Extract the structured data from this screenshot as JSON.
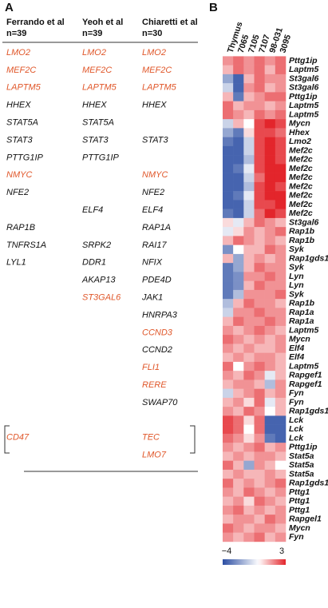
{
  "panel_a": {
    "label": "A",
    "columns": [
      {
        "name": "Ferrando et al",
        "n": "n=39"
      },
      {
        "name": "Yeoh et al",
        "n": "n=39"
      },
      {
        "name": "Chiaretti et al",
        "n": "n=30"
      }
    ],
    "rows": [
      [
        {
          "text": "LMO2",
          "highlighted": true
        },
        {
          "text": "LMO2",
          "highlighted": true
        },
        {
          "text": "LMO2",
          "highlighted": true
        }
      ],
      [
        {
          "text": "MEF2C",
          "highlighted": true
        },
        {
          "text": "MEF2C",
          "highlighted": true
        },
        {
          "text": "MEF2C",
          "highlighted": true
        }
      ],
      [
        {
          "text": "LAPTM5",
          "highlighted": true
        },
        {
          "text": "LAPTM5",
          "highlighted": true
        },
        {
          "text": "LAPTM5",
          "highlighted": true
        }
      ],
      [
        "HHEX",
        "HHEX",
        "HHEX"
      ],
      [
        "STAT5A",
        "STAT5A",
        null
      ],
      [
        "STAT3",
        "STAT3",
        "STAT3"
      ],
      [
        "PTTG1IP",
        "PTTG1IP",
        null
      ],
      [
        {
          "text": "NMYC",
          "highlighted": true
        },
        null,
        {
          "text": "NMYC",
          "highlighted": true
        }
      ],
      [
        "NFE2",
        null,
        "NFE2"
      ],
      [
        null,
        "ELF4",
        "ELF4"
      ],
      [
        "RAP1B",
        null,
        "RAP1A"
      ],
      [
        "TNFRS1A",
        "SRPK2",
        "RAI17"
      ],
      [
        "LYL1",
        "DDR1",
        "NFIX"
      ],
      [
        null,
        "AKAP13",
        "PDE4D"
      ],
      [
        null,
        {
          "text": "ST3GAL6",
          "highlighted": true
        },
        "JAK1"
      ],
      [
        null,
        null,
        "HNRPA3"
      ],
      [
        null,
        null,
        {
          "text": "CCND3",
          "highlighted": true
        }
      ],
      [
        null,
        null,
        "CCND2"
      ],
      [
        null,
        null,
        {
          "text": "FLI1",
          "highlighted": true
        }
      ],
      [
        null,
        null,
        {
          "text": "RERE",
          "highlighted": true
        }
      ],
      [
        null,
        null,
        "SWAP70"
      ],
      [
        null,
        null,
        null
      ],
      [
        {
          "text": "CD47",
          "highlighted": true
        },
        null,
        {
          "text": "TEC",
          "highlighted": true
        }
      ],
      [
        null,
        null,
        {
          "text": "LMO7",
          "highlighted": true
        }
      ]
    ]
  },
  "chart_data": {
    "type": "heatmap",
    "label": "B",
    "x": [
      "Thymus",
      "7065",
      "7105",
      "7107",
      "98-031",
      "3095"
    ],
    "y": [
      "Pttg1ip",
      "Laptm5",
      "St3gal6",
      "St3gal6",
      "Pttg1ip",
      "Laptm5",
      "Laptm5",
      "Mycn",
      "Hhex",
      "Lmo2",
      "Mef2c",
      "Mef2c",
      "Mef2c",
      "Mef2c",
      "Mef2c",
      "Mef2c",
      "Mef2c",
      "Mef2c",
      "St3gal6",
      "Rap1b",
      "Rap1b",
      "Syk",
      "Rap1gds1",
      "Syk",
      "Lyn",
      "Lyn",
      "Syk",
      "Rap1b",
      "Rap1a",
      "Rap1a",
      "Laptm5",
      "Mycn",
      "Elf4",
      "Elf4",
      "Laptm5",
      "Rapgef1",
      "Rapgef1",
      "Fyn",
      "Fyn",
      "Rap1gds1",
      "Lck",
      "Lck",
      "Lck",
      "Pttg1ip",
      "Stat5a",
      "Stat5a",
      "Stat5a",
      "Rap1gds1",
      "Pttg1",
      "Pttg1",
      "Pttg1",
      "Rapgel1",
      "Mycn",
      "Fyn"
    ],
    "values": [
      [
        1.5,
        2,
        1.5,
        2,
        1.5,
        2
      ],
      [
        1,
        2,
        1.5,
        2,
        1,
        2
      ],
      [
        -2,
        -3.5,
        1,
        2,
        1.5,
        1.5
      ],
      [
        -1,
        -3.5,
        1.5,
        2,
        1,
        1.5
      ],
      [
        1,
        -3,
        1,
        1.5,
        2,
        2
      ],
      [
        2,
        1,
        1.5,
        1.5,
        1,
        1.5
      ],
      [
        2,
        1.5,
        1,
        2,
        1.5,
        2
      ],
      [
        -1,
        1,
        0,
        2.5,
        3,
        2.5
      ],
      [
        -2,
        -3,
        0.5,
        2.5,
        2.5,
        2
      ],
      [
        -3,
        -3.5,
        -1,
        2.5,
        3,
        2.5
      ],
      [
        -3.5,
        -3.5,
        -1,
        2.5,
        3,
        2.5
      ],
      [
        -3.5,
        -3.5,
        -1.5,
        2.5,
        3,
        2.5
      ],
      [
        -3.5,
        -3,
        -0.5,
        2.5,
        3,
        3
      ],
      [
        -3.5,
        -3.5,
        -1,
        2,
        3,
        3
      ],
      [
        -3.5,
        -3.5,
        -1.5,
        2.5,
        3,
        2.5
      ],
      [
        -3.5,
        -3,
        -0.5,
        2.5,
        3,
        3
      ],
      [
        -3.5,
        -3.5,
        -1,
        2.5,
        2.5,
        3
      ],
      [
        -3,
        -3.5,
        -1,
        2,
        3,
        2.5
      ],
      [
        0.5,
        -0.5,
        1,
        2,
        1.5,
        1
      ],
      [
        -0.5,
        0.5,
        1.5,
        1,
        1.5,
        2
      ],
      [
        1,
        2,
        1.5,
        1,
        1.5,
        1
      ],
      [
        -2.5,
        0,
        1,
        1,
        2,
        1.5
      ],
      [
        1,
        -2,
        1,
        1.5,
        1,
        1.5
      ],
      [
        -3,
        -2,
        1,
        2,
        1.5,
        1.5
      ],
      [
        -3,
        -2.5,
        1.5,
        1.5,
        2,
        1.5
      ],
      [
        -3,
        -2.5,
        1,
        2,
        1.5,
        1.5
      ],
      [
        -3,
        -1.5,
        1.5,
        1.5,
        1.5,
        2
      ],
      [
        -1.5,
        1,
        2,
        1.5,
        1.5,
        1
      ],
      [
        -1,
        1.5,
        1.5,
        2,
        1.5,
        1.5
      ],
      [
        1,
        2,
        1.5,
        1.5,
        2,
        1.5
      ],
      [
        1.5,
        1,
        1.5,
        2,
        1.5,
        1
      ],
      [
        2,
        1.5,
        1,
        1.5,
        1,
        1.5
      ],
      [
        1.5,
        1,
        1.5,
        1,
        1,
        1.5
      ],
      [
        1,
        1.5,
        1,
        1.5,
        1.5,
        1
      ],
      [
        2,
        0,
        1.5,
        2,
        1.5,
        1
      ],
      [
        1.5,
        1,
        2,
        1.5,
        -0.5,
        1
      ],
      [
        1,
        1.5,
        1.5,
        1,
        -1.5,
        1.5
      ],
      [
        -1,
        1,
        1.5,
        2,
        1,
        1.5
      ],
      [
        1,
        1.5,
        0.5,
        2,
        -0.5,
        1
      ],
      [
        1.5,
        1,
        2,
        1.5,
        0,
        1
      ],
      [
        2.5,
        2,
        0.5,
        2,
        -3.5,
        -3.5
      ],
      [
        2.5,
        2,
        0,
        2,
        -3.5,
        -3.5
      ],
      [
        2,
        1.5,
        0.5,
        1.5,
        -3,
        -3.5
      ],
      [
        1.5,
        1,
        1.5,
        2,
        1,
        1.5
      ],
      [
        1,
        1.5,
        1,
        1.5,
        1.5,
        1
      ],
      [
        2,
        1,
        -2,
        1.5,
        1,
        0
      ],
      [
        1,
        1.5,
        1,
        1,
        1.5,
        1
      ],
      [
        2,
        1,
        1.5,
        1,
        1.5,
        2
      ],
      [
        1.5,
        1,
        2,
        1.5,
        1,
        1.5
      ],
      [
        1,
        1.5,
        0.5,
        2,
        1.5,
        1
      ],
      [
        1.5,
        2,
        1,
        1.5,
        1,
        1.5
      ],
      [
        1,
        1.5,
        1.5,
        1,
        2,
        1.5
      ],
      [
        2,
        1.5,
        1,
        1.5,
        1.5,
        1
      ],
      [
        1.5,
        1,
        1.5,
        2,
        1,
        1.5
      ]
    ],
    "zlim": [
      -4,
      3
    ],
    "zticks": [
      {
        "value": -4,
        "label": "−4"
      },
      3
    ],
    "colors": {
      "low": "#2b4ea3",
      "mid": "#ffffff",
      "high": "#e3252b"
    }
  }
}
